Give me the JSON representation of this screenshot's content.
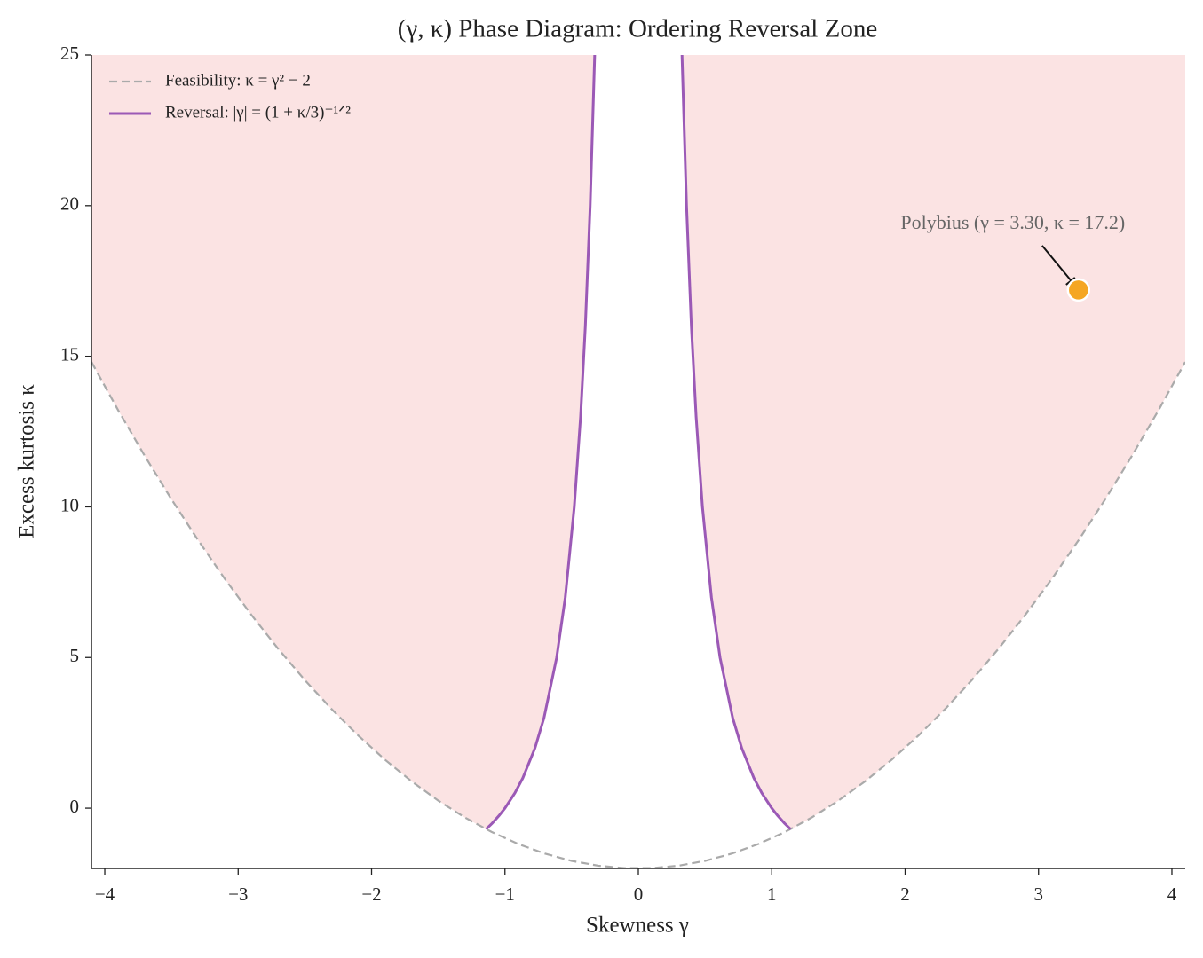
{
  "chart_data": {
    "type": "line",
    "title": "(γ, κ) Phase Diagram: Ordering Reversal Zone",
    "x_label": "Skewness γ",
    "y_label": "Excess kurtosis κ",
    "xlim": [
      -4.1,
      4.1
    ],
    "ylim": [
      -2,
      25
    ],
    "xticks": [
      {
        "value": -4,
        "label": "−4"
      },
      {
        "value": -3,
        "label": "−3"
      },
      {
        "value": -2,
        "label": "−2"
      },
      {
        "value": -1,
        "label": "−1"
      },
      0,
      1,
      2,
      3,
      4
    ],
    "yticks": [
      0,
      5,
      10,
      15,
      20,
      25
    ],
    "fill_color": "#fbe3e3",
    "legend": "upper left",
    "series": [
      {
        "name": "Feasibility: κ = γ² − 2",
        "color": "#aaaaaa",
        "dashed": true,
        "x": [
          -4.1,
          -3.9,
          -3.7,
          -3.5,
          -3.3,
          -3.1,
          -2.9,
          -2.7,
          -2.5,
          -2.3,
          -2.1,
          -1.9,
          -1.7,
          -1.5,
          -1.3,
          -1.1,
          -0.9,
          -0.7,
          -0.5,
          -0.3,
          -0.1,
          0.1,
          0.3,
          0.5,
          0.7,
          0.9,
          1.1,
          1.3,
          1.5,
          1.7,
          1.9,
          2.1,
          2.3,
          2.5,
          2.7,
          2.9,
          3.1,
          3.3,
          3.5,
          3.7,
          3.9,
          4.1
        ],
        "values": [
          14.81,
          13.21,
          11.69,
          10.25,
          8.89,
          7.61,
          6.41,
          5.29,
          4.25,
          3.29,
          2.41,
          1.61,
          0.89,
          0.25,
          -0.31,
          -0.79,
          -1.19,
          -1.51,
          -1.75,
          -1.91,
          -1.99,
          -1.99,
          -1.91,
          -1.75,
          -1.51,
          -1.19,
          -0.79,
          -0.31,
          0.25,
          0.89,
          1.61,
          2.41,
          3.29,
          4.25,
          5.29,
          6.41,
          7.61,
          8.89,
          10.25,
          11.69,
          13.21,
          14.81
        ]
      },
      {
        "name": "Reversal: |γ| = (1 + κ/3)⁻¹ᐟ²",
        "color": "#9b59b6",
        "dashed": false,
        "x": [
          -0.3273,
          -0.3612,
          -0.3974,
          -0.433,
          -0.4804,
          -0.5477,
          -0.6124,
          -0.7071,
          -0.7746,
          -0.866,
          -0.9258,
          -1,
          -1.0445,
          -1.0954,
          -1.142,
          null,
          1.142,
          1.0954,
          1.0445,
          1,
          0.9258,
          0.866,
          0.7746,
          0.7071,
          0.6124,
          0.5477,
          0.4804,
          0.433,
          0.3974,
          0.3612,
          0.3273
        ],
        "values": [
          25,
          20,
          16,
          13,
          10,
          7,
          5,
          3,
          2,
          1,
          0.5,
          0,
          -0.25,
          -0.5,
          -0.7,
          null,
          -0.7,
          -0.5,
          -0.25,
          0,
          0.5,
          1,
          2,
          3,
          5,
          7,
          10,
          13,
          16,
          20,
          25
        ]
      }
    ],
    "points": [
      {
        "x": 3.3,
        "y": 17.2,
        "color": "#f5a623",
        "label": "Polybius (γ = 3.30, κ = 17.2)"
      }
    ]
  }
}
